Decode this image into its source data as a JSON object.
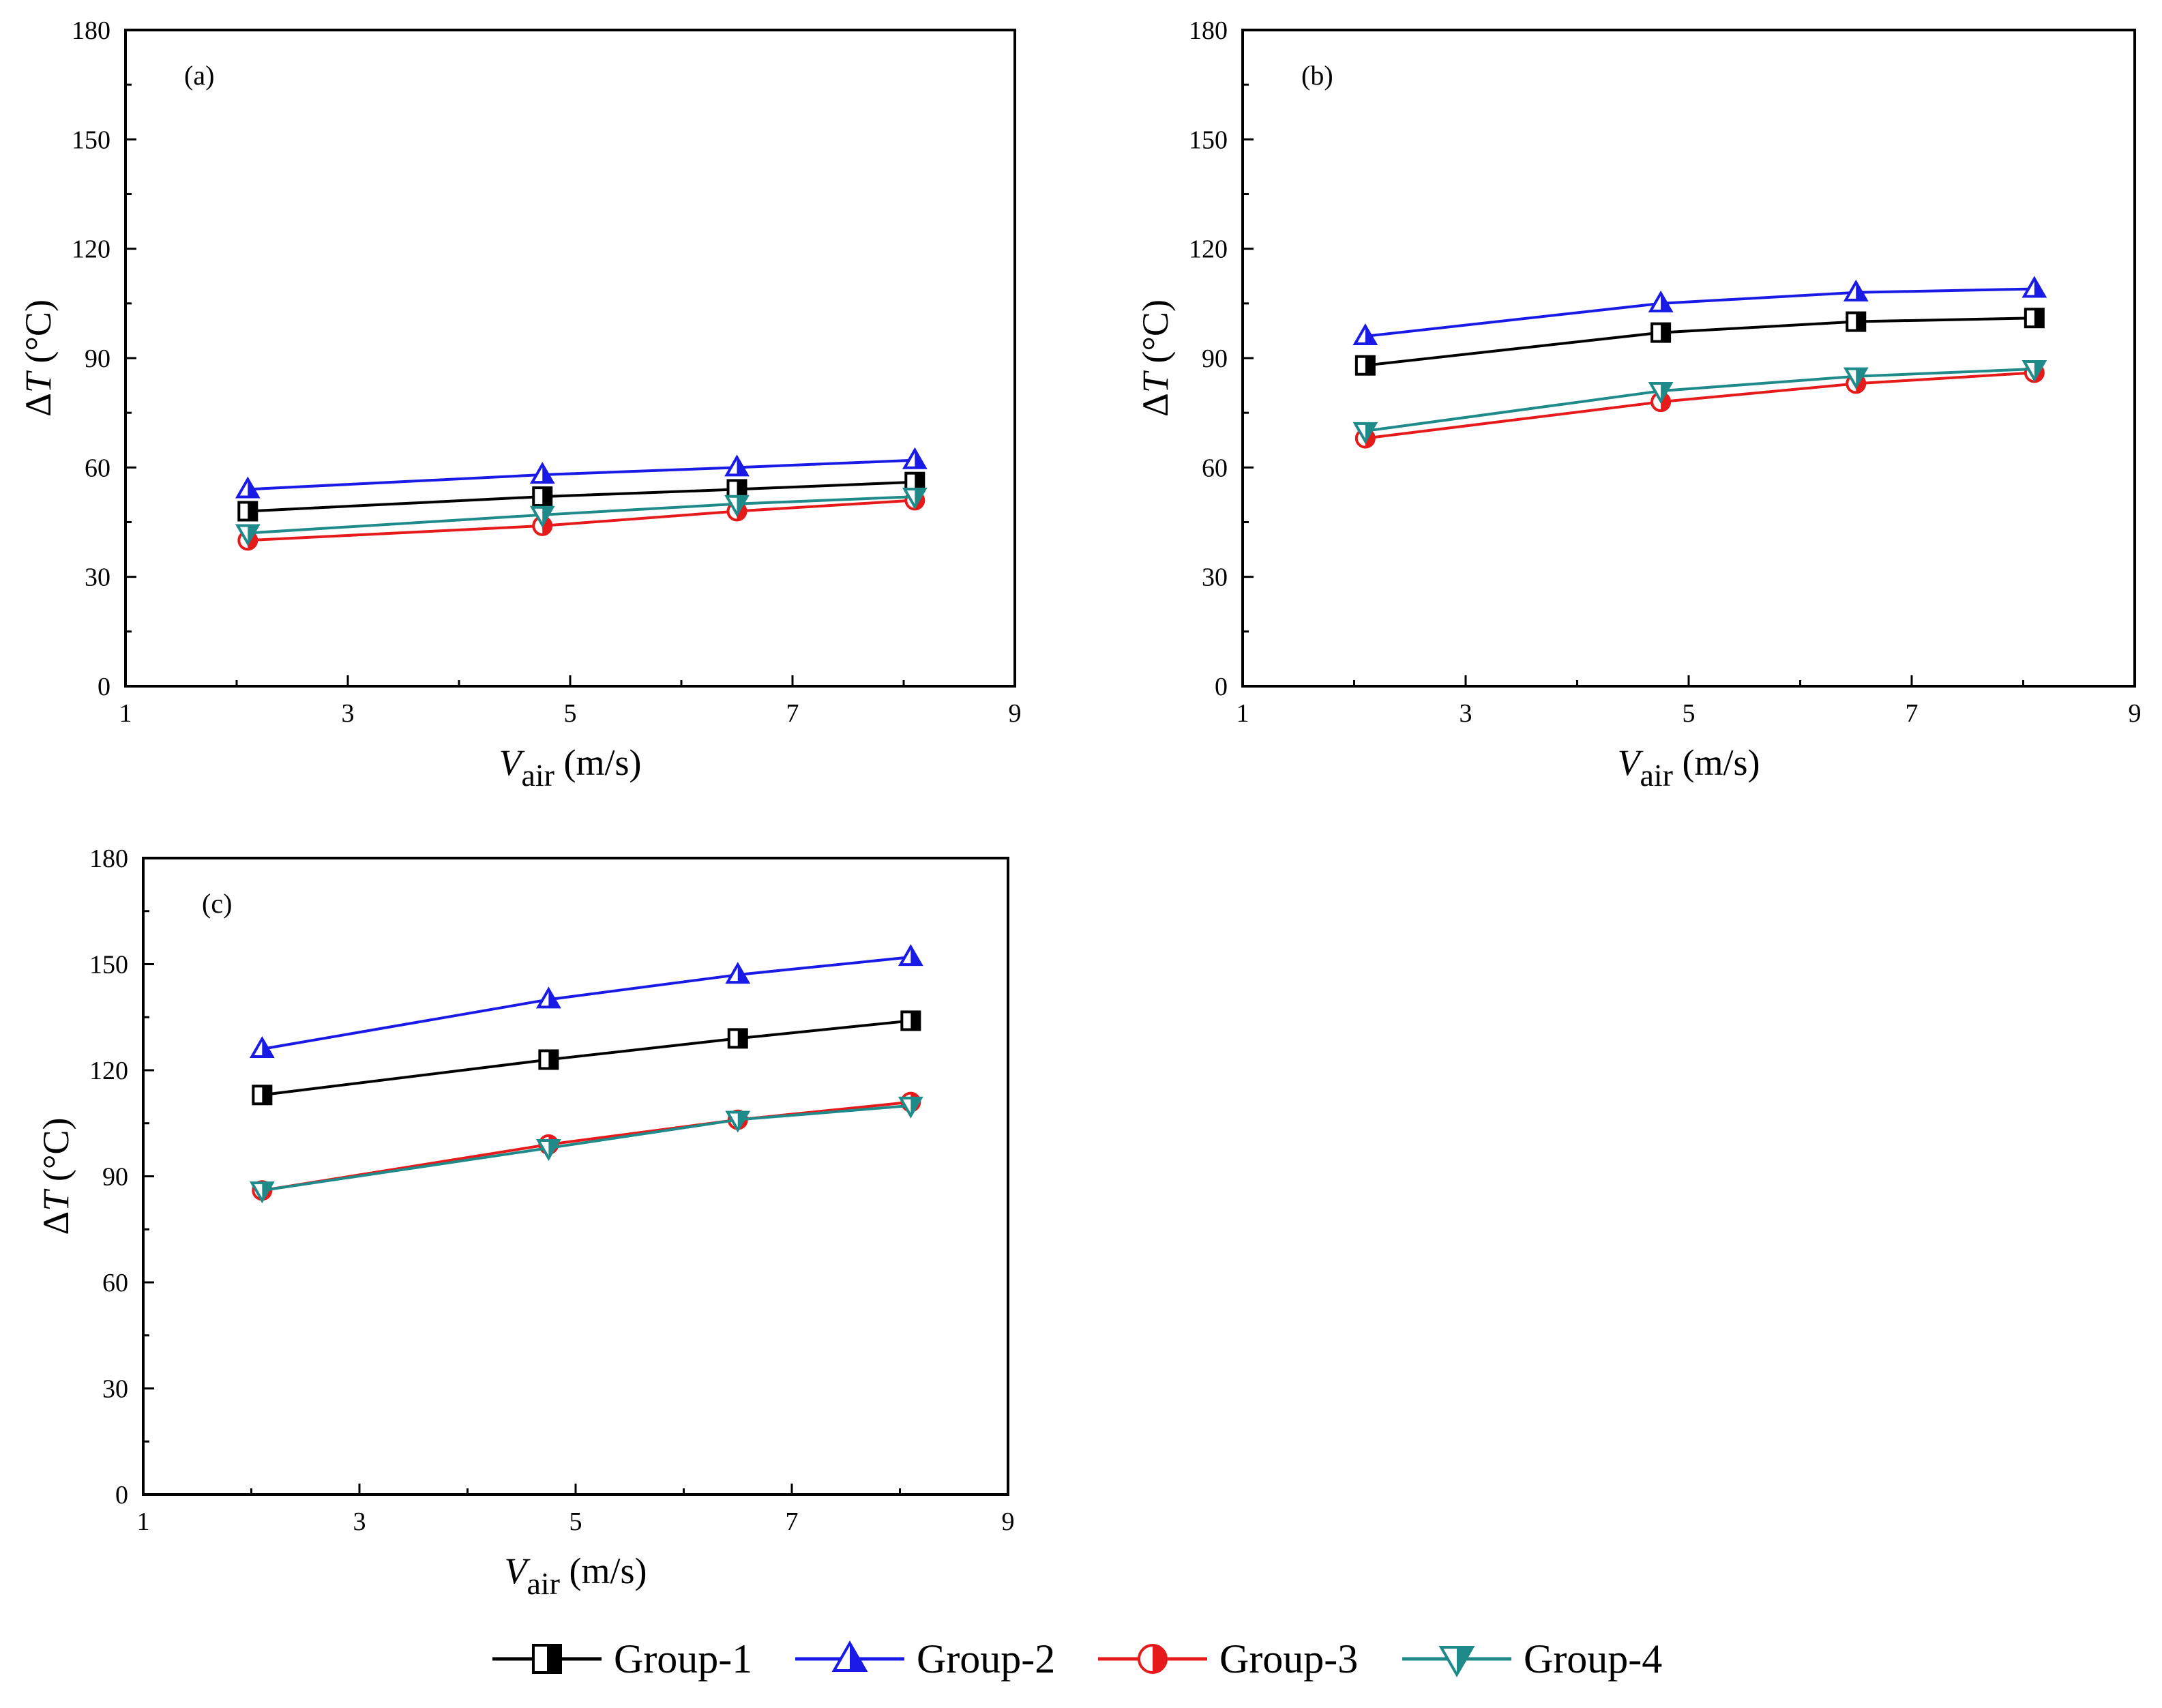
{
  "chart_data": [
    {
      "type": "line",
      "panel_label": "(a)",
      "xlabel": {
        "main": "V",
        "sub": "air",
        "unit": " (m/s)"
      },
      "ylabel": {
        "delta": "Δ",
        "var": "T",
        "unit": " (°C)"
      },
      "xlim": [
        1,
        9
      ],
      "ylim": [
        0,
        180
      ],
      "xticks": [
        1,
        3,
        5,
        7,
        9
      ],
      "yticks": [
        0,
        30,
        60,
        90,
        120,
        150,
        180
      ],
      "x": [
        2.1,
        4.75,
        6.5,
        8.1
      ],
      "series": [
        {
          "name": "Group-1",
          "values": [
            48,
            52,
            54,
            56
          ]
        },
        {
          "name": "Group-2",
          "values": [
            54,
            58,
            60,
            62
          ]
        },
        {
          "name": "Group-3",
          "values": [
            40,
            44,
            48,
            51
          ]
        },
        {
          "name": "Group-4",
          "values": [
            42,
            47,
            50,
            52
          ]
        }
      ]
    },
    {
      "type": "line",
      "panel_label": "(b)",
      "xlabel": {
        "main": "V",
        "sub": "air",
        "unit": " (m/s)"
      },
      "ylabel": {
        "delta": "Δ",
        "var": "T",
        "unit": " (°C)"
      },
      "xlim": [
        1,
        9
      ],
      "ylim": [
        0,
        180
      ],
      "xticks": [
        1,
        3,
        5,
        7,
        9
      ],
      "yticks": [
        0,
        30,
        60,
        90,
        120,
        150,
        180
      ],
      "x": [
        2.1,
        4.75,
        6.5,
        8.1
      ],
      "series": [
        {
          "name": "Group-1",
          "values": [
            88,
            97,
            100,
            101
          ]
        },
        {
          "name": "Group-2",
          "values": [
            96,
            105,
            108,
            109
          ]
        },
        {
          "name": "Group-3",
          "values": [
            68,
            78,
            83,
            86
          ]
        },
        {
          "name": "Group-4",
          "values": [
            70,
            81,
            85,
            87
          ]
        }
      ]
    },
    {
      "type": "line",
      "panel_label": "(c)",
      "xlabel": {
        "main": "V",
        "sub": "air",
        "unit": " (m/s)"
      },
      "ylabel": {
        "delta": "Δ",
        "var": "T",
        "unit": " (°C)"
      },
      "xlim": [
        1,
        9
      ],
      "ylim": [
        0,
        180
      ],
      "xticks": [
        1,
        3,
        5,
        7,
        9
      ],
      "yticks": [
        0,
        30,
        60,
        90,
        120,
        150,
        180
      ],
      "x": [
        2.1,
        4.75,
        6.5,
        8.1
      ],
      "series": [
        {
          "name": "Group-1",
          "values": [
            113,
            123,
            129,
            134
          ]
        },
        {
          "name": "Group-2",
          "values": [
            126,
            140,
            147,
            152
          ]
        },
        {
          "name": "Group-3",
          "values": [
            86,
            99,
            106,
            111
          ]
        },
        {
          "name": "Group-4",
          "values": [
            86,
            98,
            106,
            110
          ]
        }
      ]
    }
  ],
  "legend": [
    {
      "name": "Group-1",
      "color": "#000000",
      "marker": "half-filled-square"
    },
    {
      "name": "Group-2",
      "color": "#1a1ae6",
      "marker": "triangle-up"
    },
    {
      "name": "Group-3",
      "color": "#e61a1a",
      "marker": "half-filled-circle"
    },
    {
      "name": "Group-4",
      "color": "#1f8a8a",
      "marker": "triangle-down"
    }
  ]
}
